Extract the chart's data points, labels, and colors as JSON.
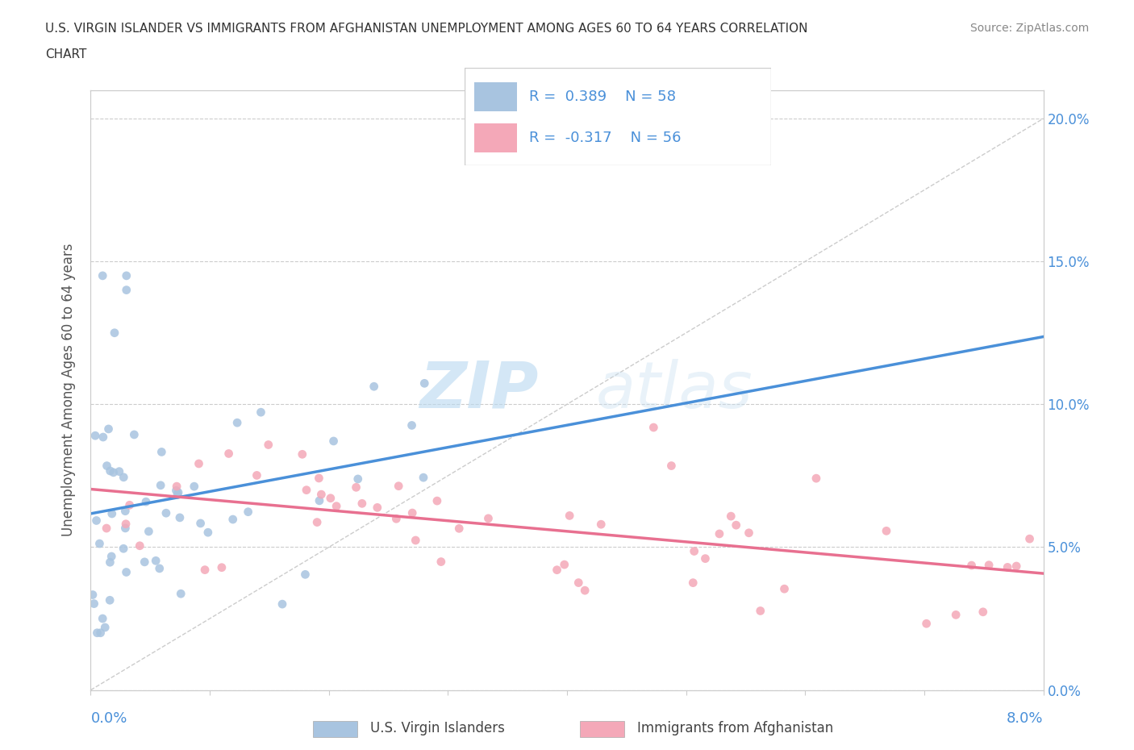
{
  "title_line1": "U.S. VIRGIN ISLANDER VS IMMIGRANTS FROM AFGHANISTAN UNEMPLOYMENT AMONG AGES 60 TO 64 YEARS CORRELATION",
  "title_line2": "CHART",
  "source": "Source: ZipAtlas.com",
  "ylabel": "Unemployment Among Ages 60 to 64 years",
  "ytick_values": [
    0.0,
    0.05,
    0.1,
    0.15,
    0.2
  ],
  "xmin": 0.0,
  "xmax": 0.08,
  "ymin": 0.0,
  "ymax": 0.21,
  "legend1_r": "0.389",
  "legend1_n": "58",
  "legend2_r": "-0.317",
  "legend2_n": "56",
  "color_blue": "#a8c4e0",
  "color_pink": "#f4a8b8",
  "color_blue_dark": "#4a90d9",
  "color_pink_dark": "#e87090",
  "color_text_blue": "#4a90d9",
  "watermark_zip": "ZIP",
  "watermark_atlas": "atlas"
}
